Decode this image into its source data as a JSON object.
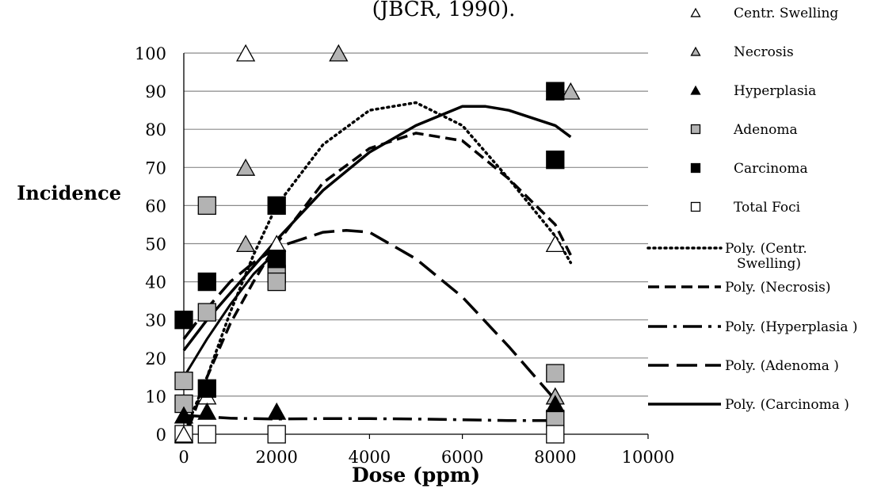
{
  "chart_data": {
    "type": "scatter",
    "title": "(JBCR, 1990).",
    "xlabel": "Dose (ppm)",
    "ylabel": "Incidence",
    "xlim": [
      0,
      10000
    ],
    "ylim": [
      0,
      100
    ],
    "xticks": [
      "0",
      "2000",
      "4000",
      "6000",
      "8000",
      "10000"
    ],
    "yticks": [
      "0",
      "10",
      "20",
      "30",
      "40",
      "50",
      "60",
      "70",
      "80",
      "90",
      "100"
    ],
    "grid": "horizontal",
    "legend_position": "right",
    "series": [
      {
        "name": "Centr. Swelling",
        "marker": "triangle",
        "fill": "#ffffff",
        "points": [
          [
            0,
            0
          ],
          [
            500,
            10
          ],
          [
            1333,
            100
          ],
          [
            2000,
            50
          ],
          [
            8000,
            50
          ],
          [
            8000,
            90
          ]
        ]
      },
      {
        "name": "Necrosis",
        "marker": "triangle",
        "fill": "#b3b3b3",
        "points": [
          [
            0,
            5
          ],
          [
            1333,
            70
          ],
          [
            1333,
            50
          ],
          [
            3333,
            100
          ],
          [
            8000,
            10
          ],
          [
            8333,
            90
          ]
        ]
      },
      {
        "name": "Hyperplasia",
        "marker": "triangle",
        "fill": "#000000",
        "points": [
          [
            0,
            5
          ],
          [
            500,
            6
          ],
          [
            2000,
            6
          ],
          [
            8000,
            8
          ]
        ]
      },
      {
        "name": "Adenoma",
        "marker": "square",
        "fill": "#b3b3b3",
        "points": [
          [
            0,
            14
          ],
          [
            0,
            8
          ],
          [
            500,
            60
          ],
          [
            500,
            32
          ],
          [
            2000,
            42
          ],
          [
            2000,
            40
          ],
          [
            8000,
            16
          ],
          [
            8000,
            4
          ]
        ]
      },
      {
        "name": "Carcinoma",
        "marker": "square",
        "fill": "#000000",
        "points": [
          [
            0,
            30
          ],
          [
            500,
            40
          ],
          [
            500,
            12
          ],
          [
            2000,
            60
          ],
          [
            2000,
            46
          ],
          [
            8000,
            90
          ],
          [
            8000,
            72
          ]
        ]
      },
      {
        "name": "Total Foci",
        "marker": "square",
        "fill": "#ffffff",
        "points": [
          [
            0,
            0
          ],
          [
            500,
            0
          ],
          [
            2000,
            0
          ],
          [
            8000,
            0
          ]
        ]
      }
    ],
    "trendlines": [
      {
        "name": "Poly. (Centr. Swelling)",
        "dash": "2,5",
        "width": 3.5,
        "points": [
          [
            0,
            0
          ],
          [
            500,
            15
          ],
          [
            1000,
            32
          ],
          [
            1500,
            47
          ],
          [
            2000,
            60
          ],
          [
            3000,
            76
          ],
          [
            4000,
            85
          ],
          [
            5000,
            87
          ],
          [
            6000,
            81
          ],
          [
            7000,
            67
          ],
          [
            8000,
            52
          ],
          [
            8333,
            45
          ]
        ]
      },
      {
        "name": "Poly. (Necrosis)",
        "dash": "14,7",
        "width": 3.5,
        "points": [
          [
            0,
            -2
          ],
          [
            500,
            15
          ],
          [
            1000,
            29
          ],
          [
            1500,
            40
          ],
          [
            2000,
            50
          ],
          [
            3000,
            66
          ],
          [
            4000,
            75
          ],
          [
            5000,
            79
          ],
          [
            6000,
            77
          ],
          [
            7000,
            67
          ],
          [
            8000,
            55
          ],
          [
            8333,
            47
          ]
        ]
      },
      {
        "name": "Poly. (Hyperplasia )",
        "dash": "24,8,4,8",
        "width": 3.5,
        "points": [
          [
            0,
            5
          ],
          [
            1000,
            4.2
          ],
          [
            2000,
            4
          ],
          [
            3000,
            4.1
          ],
          [
            4000,
            4.1
          ],
          [
            5000,
            4
          ],
          [
            6000,
            3.8
          ],
          [
            7000,
            3.6
          ],
          [
            8000,
            3.6
          ]
        ]
      },
      {
        "name": "Poly. (Adenoma )",
        "dash": "26,10",
        "width": 3.5,
        "points": [
          [
            0,
            25
          ],
          [
            500,
            33
          ],
          [
            1000,
            40
          ],
          [
            1500,
            45
          ],
          [
            2000,
            49
          ],
          [
            3000,
            53
          ],
          [
            3500,
            53.5
          ],
          [
            4000,
            53
          ],
          [
            5000,
            46
          ],
          [
            6000,
            36
          ],
          [
            7000,
            23
          ],
          [
            8000,
            9
          ]
        ]
      },
      {
        "name": "Poly. (Carcinoma )",
        "dash": "",
        "width": 3.5,
        "points": [
          [
            0,
            22
          ],
          [
            500,
            30
          ],
          [
            1000,
            37
          ],
          [
            1500,
            44
          ],
          [
            2000,
            51
          ],
          [
            3000,
            64
          ],
          [
            4000,
            74
          ],
          [
            5000,
            81
          ],
          [
            6000,
            86
          ],
          [
            6500,
            86
          ],
          [
            7000,
            85
          ],
          [
            8000,
            81
          ],
          [
            8333,
            78
          ]
        ]
      }
    ],
    "trendlines_extra": [
      {
        "name": "",
        "dash": "",
        "width": 3,
        "points": [
          [
            0,
            15
          ],
          [
            500,
            25
          ],
          [
            1000,
            34
          ],
          [
            1500,
            42
          ],
          [
            2000,
            48
          ]
        ]
      }
    ]
  }
}
